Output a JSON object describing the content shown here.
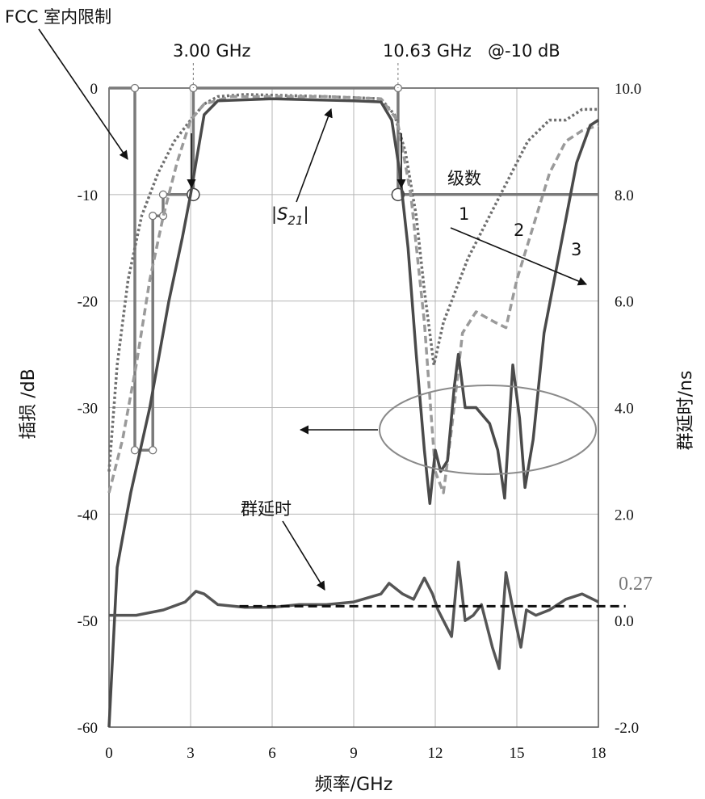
{
  "chart_data": {
    "type": "line",
    "xlabel": "频率/GHz",
    "ylabel": "插损 /dB",
    "ylabel_right": "群延时/ns",
    "xlim": [
      0,
      18
    ],
    "ylim": [
      -60,
      0
    ],
    "ylim_right": [
      -2.0,
      10.0
    ],
    "x_ticks": [
      "0",
      "3",
      "6",
      "9",
      "12",
      "15",
      "18"
    ],
    "y_ticks": [
      "0",
      "-10",
      "-20",
      "-30",
      "-40",
      "-50",
      "-60"
    ],
    "y_right_ticks": [
      "10.0",
      "8.0",
      "6.0",
      "4.0",
      "2.0",
      "0.0",
      "-2.0"
    ],
    "grid": true,
    "annotations": {
      "fcc": "FCC 室内限制",
      "f_low": "3.00 GHz",
      "f_high": "10.63 GHz",
      "at_db": "@-10 dB",
      "order": "级数",
      "order_1": "1",
      "order_2": "2",
      "order_3": "3",
      "s21": "|S",
      "s21_sub": "21",
      "s21_end": "|",
      "group_delay": "群延时",
      "gd_value": "0.27"
    },
    "fcc_mask": [
      [
        0,
        0
      ],
      [
        0.95,
        0
      ],
      [
        0.95,
        -34
      ],
      [
        1.61,
        -34
      ],
      [
        1.61,
        -12
      ],
      [
        1.99,
        -12
      ],
      [
        1.99,
        -10
      ],
      [
        3.1,
        -10
      ],
      [
        3.1,
        0
      ],
      [
        10.63,
        0
      ],
      [
        10.63,
        -10
      ],
      [
        18,
        -10
      ]
    ],
    "series": [
      {
        "order": 1,
        "style": "dotted",
        "color": "#6f6f6f",
        "s21": [
          [
            0,
            -36
          ],
          [
            0.3,
            -26
          ],
          [
            0.7,
            -18
          ],
          [
            1.2,
            -12
          ],
          [
            1.8,
            -8
          ],
          [
            2.4,
            -5
          ],
          [
            3.0,
            -3
          ],
          [
            3.5,
            -1.5
          ],
          [
            4.0,
            -0.8
          ],
          [
            5.0,
            -0.6
          ],
          [
            8.0,
            -0.8
          ],
          [
            10.0,
            -1.0
          ],
          [
            10.5,
            -2.5
          ],
          [
            10.9,
            -6
          ],
          [
            11.3,
            -12
          ],
          [
            11.6,
            -19
          ],
          [
            11.95,
            -26
          ],
          [
            12.3,
            -22
          ],
          [
            12.6,
            -20
          ],
          [
            13.2,
            -16
          ],
          [
            14.0,
            -12
          ],
          [
            14.8,
            -8
          ],
          [
            15.4,
            -5
          ],
          [
            16.2,
            -3
          ],
          [
            16.8,
            -3
          ],
          [
            17.4,
            -2
          ],
          [
            18,
            -2
          ]
        ]
      },
      {
        "order": 2,
        "style": "dashed",
        "color": "#9a9a9a",
        "s21": [
          [
            0,
            -38
          ],
          [
            0.5,
            -33
          ],
          [
            1.0,
            -26
          ],
          [
            1.5,
            -18
          ],
          [
            2.0,
            -12
          ],
          [
            2.5,
            -7
          ],
          [
            3.0,
            -3
          ],
          [
            3.5,
            -1.5
          ],
          [
            4.5,
            -0.8
          ],
          [
            8.0,
            -0.8
          ],
          [
            10.0,
            -1.0
          ],
          [
            10.6,
            -3
          ],
          [
            11.1,
            -10
          ],
          [
            11.6,
            -22
          ],
          [
            12.0,
            -36
          ],
          [
            12.3,
            -38
          ],
          [
            12.6,
            -32
          ],
          [
            13.0,
            -23
          ],
          [
            13.5,
            -21
          ],
          [
            14.2,
            -22
          ],
          [
            14.6,
            -22.5
          ],
          [
            15.0,
            -18
          ],
          [
            15.6,
            -13
          ],
          [
            16.2,
            -8
          ],
          [
            16.8,
            -5
          ],
          [
            17.4,
            -4
          ],
          [
            18,
            -3.5
          ]
        ]
      },
      {
        "order": 3,
        "style": "solid",
        "color": "#4a4a4a",
        "s21": [
          [
            0,
            -60
          ],
          [
            0.3,
            -45
          ],
          [
            0.8,
            -38
          ],
          [
            1.5,
            -30
          ],
          [
            2.2,
            -20
          ],
          [
            2.7,
            -14
          ],
          [
            3.0,
            -10
          ],
          [
            3.5,
            -2.5
          ],
          [
            4.0,
            -1.2
          ],
          [
            6.0,
            -1.0
          ],
          [
            9.0,
            -1.2
          ],
          [
            10.0,
            -1.3
          ],
          [
            10.4,
            -3
          ],
          [
            10.7,
            -8
          ],
          [
            11.0,
            -15
          ],
          [
            11.3,
            -25
          ],
          [
            11.6,
            -34
          ],
          [
            11.8,
            -39
          ],
          [
            12.0,
            -34
          ],
          [
            12.2,
            -36
          ],
          [
            12.45,
            -35
          ],
          [
            12.7,
            -28
          ],
          [
            12.85,
            -25
          ],
          [
            13.1,
            -30
          ],
          [
            13.5,
            -30
          ],
          [
            14.0,
            -31.5
          ],
          [
            14.3,
            -34
          ],
          [
            14.55,
            -38.5
          ],
          [
            14.85,
            -26
          ],
          [
            15.1,
            -31
          ],
          [
            15.3,
            -37.5
          ],
          [
            15.6,
            -33
          ],
          [
            16.0,
            -23
          ],
          [
            16.6,
            -15
          ],
          [
            17.2,
            -7
          ],
          [
            17.7,
            -3.5
          ],
          [
            18,
            -3
          ]
        ],
        "group_delay": [
          [
            0,
            0.1
          ],
          [
            1,
            0.1
          ],
          [
            2,
            0.2
          ],
          [
            2.8,
            0.35
          ],
          [
            3.2,
            0.55
          ],
          [
            3.5,
            0.5
          ],
          [
            4.0,
            0.3
          ],
          [
            5,
            0.25
          ],
          [
            6,
            0.25
          ],
          [
            7,
            0.3
          ],
          [
            8,
            0.3
          ],
          [
            9,
            0.35
          ],
          [
            10,
            0.5
          ],
          [
            10.3,
            0.7
          ],
          [
            10.8,
            0.5
          ],
          [
            11.2,
            0.4
          ],
          [
            11.6,
            0.8
          ],
          [
            11.9,
            0.5
          ],
          [
            12.1,
            0.2
          ],
          [
            12.3,
            0.0
          ],
          [
            12.6,
            -0.3
          ],
          [
            12.85,
            1.1
          ],
          [
            13.1,
            0.0
          ],
          [
            13.4,
            0.1
          ],
          [
            13.7,
            0.3
          ],
          [
            14.1,
            -0.5
          ],
          [
            14.35,
            -0.9
          ],
          [
            14.6,
            0.9
          ],
          [
            14.9,
            0.1
          ],
          [
            15.15,
            -0.5
          ],
          [
            15.35,
            0.2
          ],
          [
            15.7,
            0.1
          ],
          [
            16.2,
            0.2
          ],
          [
            16.8,
            0.4
          ],
          [
            17.4,
            0.5
          ],
          [
            18,
            0.35
          ]
        ]
      }
    ],
    "group_delay_reference": {
      "value": 0.27,
      "x_start": 4.8,
      "x_end": 19.0
    }
  }
}
